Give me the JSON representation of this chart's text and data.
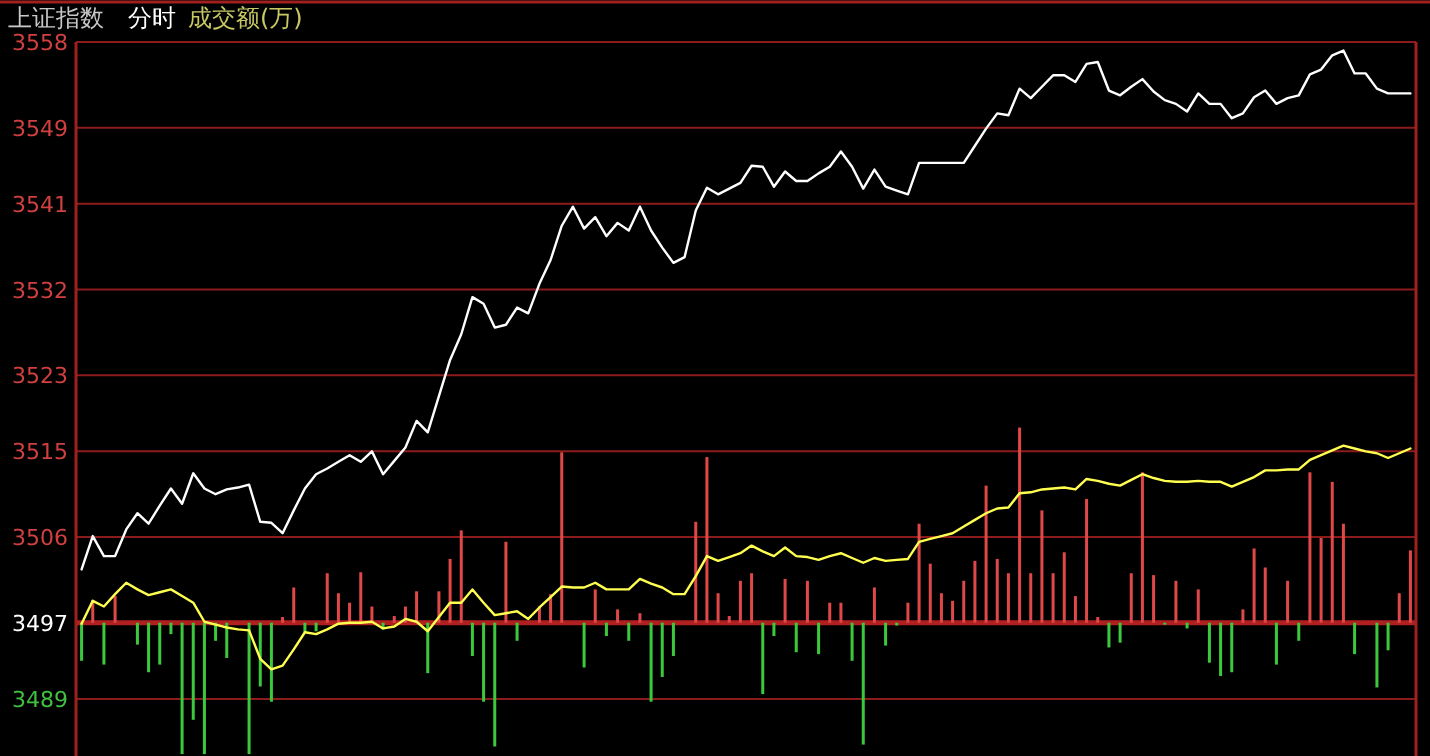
{
  "chart_data": {
    "type": "line",
    "title": "上证指数",
    "subtitle": "分时",
    "annotations": [
      "成交额(万)"
    ],
    "categories": [
      null,
      null,
      null,
      null,
      null,
      null,
      null,
      null,
      null,
      null,
      null,
      null,
      null,
      null,
      null,
      null,
      null,
      null,
      null,
      null,
      null,
      null,
      null,
      null,
      null,
      null,
      null,
      null,
      null,
      null,
      null,
      null,
      null,
      null,
      null,
      null,
      null,
      null,
      null,
      null,
      null,
      null,
      null,
      null,
      null,
      null,
      null,
      null,
      null,
      null,
      null,
      null,
      null,
      null,
      null,
      null,
      null,
      null,
      null,
      null,
      null,
      null,
      null,
      null,
      null,
      null,
      null,
      null,
      null,
      null,
      null,
      null,
      null,
      null,
      null,
      null,
      null,
      null,
      null,
      null,
      null,
      null,
      null,
      null,
      null,
      null,
      null,
      null,
      null,
      null,
      null,
      null,
      null,
      null,
      null,
      null,
      null,
      null,
      null,
      null,
      null,
      null,
      null,
      null,
      null,
      null,
      null,
      null,
      null,
      null,
      null,
      null,
      null,
      null,
      null,
      null,
      null,
      null,
      null,
      null
    ],
    "ylim": [
      3483,
      3558
    ],
    "yticks": [
      3489,
      3497,
      3506,
      3515,
      3523,
      3532,
      3541,
      3549,
      3558
    ],
    "tick_labels": "y",
    "grid": "y",
    "ref_lines": [
      {
        "axis": "y",
        "value": 3497,
        "color": "#b02020",
        "line_style": "solid"
      }
    ],
    "series": [
      {
        "type": "bar",
        "values": [
          -4.0,
          2.4,
          -4.4,
          2.8,
          null,
          -2.3,
          -5.2,
          -4.4,
          -1.2,
          -13.8,
          -10.2,
          -13.8,
          -1.9,
          -3.7,
          null,
          -13.8,
          -6.7,
          -8.3,
          0.6,
          3.7,
          -1.0,
          -0.9,
          5.2,
          3.1,
          2.1,
          5.3,
          1.7,
          -0.7,
          0.7,
          1.7,
          3.3,
          -5.3,
          3.3,
          6.7,
          9.7,
          -3.5,
          -8.3,
          -13.0,
          8.5,
          -1.9,
          null,
          1.7,
          3.0,
          17.9,
          null,
          -4.7,
          3.5,
          -1.4,
          1.4,
          -1.9,
          1.0,
          -8.3,
          -5.7,
          -3.5,
          null,
          10.6,
          17.4,
          3.1,
          0.7,
          4.4,
          5.2,
          -7.5,
          -1.4,
          4.6,
          -3.1,
          4.4,
          -3.3,
          2.1,
          2.1,
          -4.0,
          -12.8,
          3.7,
          -2.4,
          -0.3,
          2.1,
          10.4,
          6.2,
          3.1,
          2.3,
          4.4,
          6.5,
          14.4,
          6.7,
          5.2,
          20.5,
          5.2,
          11.8,
          5.2,
          7.4,
          2.8,
          13.0,
          0.6,
          -2.6,
          -2.1,
          5.2,
          15.8,
          5.0,
          -0.2,
          4.4,
          -0.6,
          3.5,
          -4.2,
          -5.6,
          -5.2,
          1.4,
          7.8,
          5.8,
          -4.4,
          4.4,
          -1.9,
          15.8,
          8.9,
          14.8,
          10.4,
          -3.3,
          null,
          -6.8,
          -2.9,
          3.1,
          7.6
        ],
        "colors": [
          "#3cc83c",
          "#e04848",
          "#3cc83c",
          "#e04848",
          null,
          "#3cc83c",
          "#3cc83c",
          "#3cc83c",
          "#3cc83c",
          "#3cc83c",
          "#3cc83c",
          "#3cc83c",
          "#3cc83c",
          "#3cc83c",
          null,
          "#3cc83c",
          "#3cc83c",
          "#3cc83c",
          "#e04848",
          "#e04848",
          "#3cc83c",
          "#3cc83c",
          "#e04848",
          "#e04848",
          "#e04848",
          "#e04848",
          "#e04848",
          "#3cc83c",
          "#e04848",
          "#e04848",
          "#e04848",
          "#3cc83c",
          "#e04848",
          "#e04848",
          "#e04848",
          "#3cc83c",
          "#3cc83c",
          "#3cc83c",
          "#e04848",
          "#3cc83c",
          null,
          "#e04848",
          "#e04848",
          "#e04848",
          null,
          "#3cc83c",
          "#e04848",
          "#3cc83c",
          "#e04848",
          "#3cc83c",
          "#e04848",
          "#3cc83c",
          "#3cc83c",
          "#3cc83c",
          null,
          "#e04848",
          "#e04848",
          "#e04848",
          "#e04848",
          "#e04848",
          "#e04848",
          "#3cc83c",
          "#3cc83c",
          "#e04848",
          "#3cc83c",
          "#e04848",
          "#3cc83c",
          "#e04848",
          "#e04848",
          "#3cc83c",
          "#3cc83c",
          "#e04848",
          "#3cc83c",
          "#3cc83c",
          "#e04848",
          "#e04848",
          "#e04848",
          "#e04848",
          "#e04848",
          "#e04848",
          "#e04848",
          "#e04848",
          "#e04848",
          "#e04848",
          "#e04848",
          "#e04848",
          "#e04848",
          "#e04848",
          "#e04848",
          "#e04848",
          "#e04848",
          "#e04848",
          "#3cc83c",
          "#3cc83c",
          "#e04848",
          "#e04848",
          "#e04848",
          "#3cc83c",
          "#e04848",
          "#3cc83c",
          "#e04848",
          "#3cc83c",
          "#3cc83c",
          "#3cc83c",
          "#e04848",
          "#e04848",
          "#e04848",
          "#3cc83c",
          "#e04848",
          "#3cc83c",
          "#e04848",
          "#e04848",
          "#e04848",
          "#e04848",
          "#3cc83c",
          null,
          "#3cc83c",
          "#3cc83c",
          "#e04848",
          "#e04848"
        ],
        "base": [
          3497,
          3497,
          3497,
          3497,
          null,
          3497,
          3497,
          3497,
          3497,
          3497,
          3497,
          3497,
          3497,
          3497,
          null,
          3497,
          3497,
          3497,
          3497,
          3497,
          3497,
          3497,
          3497,
          3497,
          3497,
          3497,
          3497,
          3497,
          3497,
          3497,
          3497,
          3497,
          3497,
          3497,
          3497,
          3497,
          3497,
          3497,
          3497,
          3497,
          null,
          3497,
          3497,
          3497,
          null,
          3497,
          3497,
          3497,
          3497,
          3497,
          3497,
          3497,
          3497,
          3497,
          null,
          3497,
          3497,
          3497,
          3497,
          3497,
          3497,
          3497,
          3497,
          3497,
          3497,
          3497,
          3497,
          3497,
          3497,
          3497,
          3497,
          3497,
          3497,
          3497,
          3497,
          3497,
          3497,
          3497,
          3497,
          3497,
          3497,
          3497,
          3497,
          3497,
          3497,
          3497,
          3497,
          3497,
          3497,
          3497,
          3497,
          3497,
          3497,
          3497,
          3497,
          3497,
          3497,
          3497,
          3497,
          3497,
          3497,
          3497,
          3497,
          3497,
          3497,
          3497,
          3497,
          3497,
          3497,
          3497,
          3497,
          3497,
          3497,
          3497,
          3497,
          null,
          3497,
          3497,
          3497,
          3497
        ]
      },
      {
        "color": "#ffff50",
        "values": [
          3496.9,
          3499.3,
          3498.7,
          3500.0,
          3501.2,
          3500.5,
          3499.9,
          3500.2,
          3500.5,
          3499.8,
          3499.1,
          3497.1,
          3496.8,
          3496.5,
          3496.3,
          3496.2,
          3493.2,
          3492.1,
          3492.5,
          3494.2,
          3496.0,
          3495.8,
          3496.3,
          3496.9,
          3497.0,
          3497.0,
          3497.1,
          3496.4,
          3496.6,
          3497.4,
          3497.1,
          3496.1,
          3497.6,
          3499.1,
          3499.1,
          3500.5,
          3499.1,
          3497.8,
          3498.0,
          3498.2,
          3497.4,
          3498.6,
          3499.7,
          3500.8,
          3500.7,
          3500.7,
          3501.2,
          3500.5,
          3500.5,
          3500.5,
          3501.6,
          3501.1,
          3500.7,
          3500.0,
          3500.0,
          3501.9,
          3504.0,
          3503.5,
          3503.9,
          3504.3,
          3505.1,
          3504.5,
          3504.0,
          3504.9,
          3504.0,
          3503.9,
          3503.6,
          3504.0,
          3504.3,
          3503.8,
          3503.3,
          3503.8,
          3503.5,
          3503.6,
          3503.7,
          3505.5,
          3505.8,
          3506.1,
          3506.4,
          3507.1,
          3507.8,
          3508.5,
          3509.0,
          3509.1,
          3510.6,
          3510.7,
          3511.0,
          3511.1,
          3511.2,
          3511.0,
          3512.1,
          3511.9,
          3511.6,
          3511.4,
          3512.0,
          3512.6,
          3512.2,
          3511.9,
          3511.8,
          3511.8,
          3511.9,
          3511.8,
          3511.8,
          3511.3,
          3511.8,
          3512.3,
          3513.0,
          3513.0,
          3513.1,
          3513.1,
          3514.1,
          3514.6,
          3515.1,
          3515.6,
          3515.3,
          3515.0,
          3514.8,
          3514.3,
          3514.8,
          3515.3
        ]
      },
      {
        "color": "#ffffff",
        "values": [
          3502.6,
          3506.1,
          3504.0,
          3504.0,
          3506.8,
          3508.5,
          3507.4,
          3509.3,
          3511.1,
          3509.5,
          3512.7,
          3511.1,
          3510.5,
          3511.0,
          3511.2,
          3511.5,
          3507.6,
          3507.5,
          3506.4,
          3508.8,
          3511.1,
          3512.6,
          3513.2,
          3513.9,
          3514.6,
          3513.9,
          3515.0,
          3512.6,
          3514.0,
          3515.4,
          3518.2,
          3517.0,
          3520.8,
          3524.6,
          3527.3,
          3531.2,
          3530.5,
          3528.0,
          3528.3,
          3530.1,
          3529.5,
          3532.6,
          3535.1,
          3538.7,
          3540.7,
          3538.4,
          3539.6,
          3537.6,
          3539.0,
          3538.2,
          3540.7,
          3538.2,
          3536.4,
          3534.8,
          3535.4,
          3540.3,
          3542.7,
          3542.0,
          3542.6,
          3543.2,
          3545.0,
          3544.9,
          3542.8,
          3544.4,
          3543.4,
          3543.4,
          3544.2,
          3544.9,
          3546.5,
          3544.9,
          3542.6,
          3544.6,
          3542.8,
          3542.4,
          3542.0,
          3545.3,
          3545.3,
          3545.3,
          3545.3,
          3545.3,
          3547.1,
          3548.9,
          3550.5,
          3550.3,
          3553.1,
          3552.1,
          3553.3,
          3554.5,
          3554.5,
          3553.8,
          3555.7,
          3555.9,
          3552.9,
          3552.4,
          3553.3,
          3554.1,
          3552.8,
          3551.9,
          3551.5,
          3550.7,
          3552.6,
          3551.5,
          3551.5,
          3550.0,
          3550.5,
          3552.2,
          3552.9,
          3551.5,
          3552.1,
          3552.4,
          3554.6,
          3555.1,
          3556.6,
          3557.1,
          3554.7,
          3554.7,
          3553.1,
          3552.6,
          3552.6,
          3552.6
        ]
      }
    ]
  }
}
